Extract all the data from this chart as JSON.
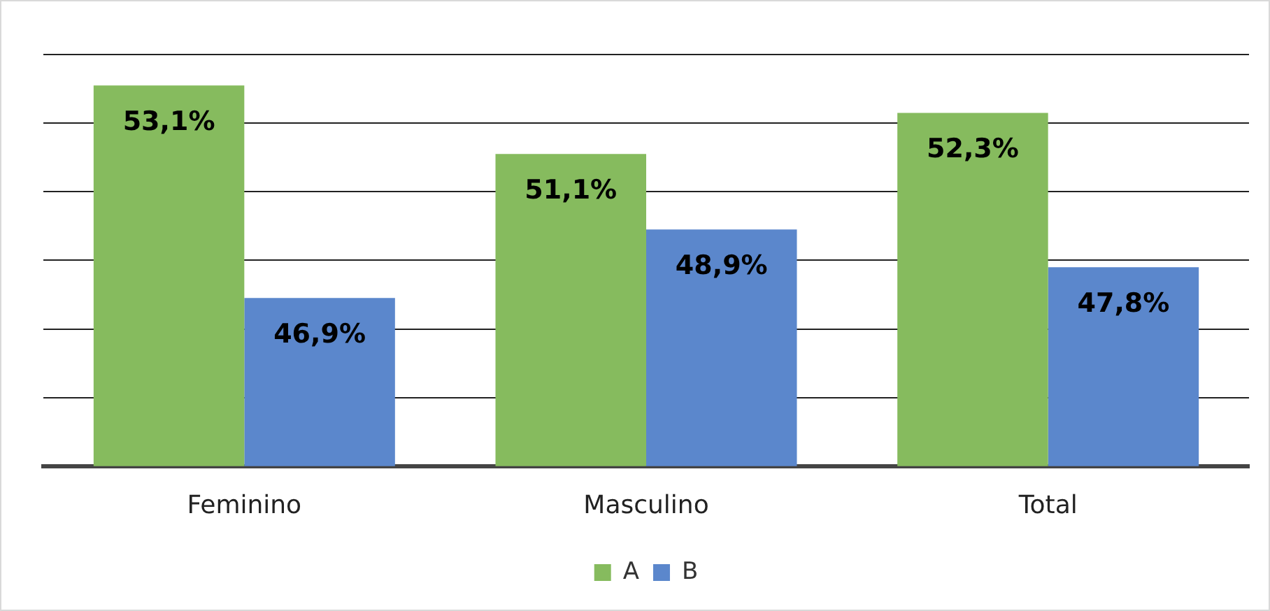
{
  "chart_data": {
    "type": "bar",
    "categories": [
      "Feminino",
      "Masculino",
      "Total"
    ],
    "series": [
      {
        "name": "A",
        "color": "#86bb5e",
        "values": [
          53.1,
          51.1,
          52.3
        ],
        "value_labels": [
          "53,1%",
          "51,1%",
          "52,3%"
        ]
      },
      {
        "name": "B",
        "color": "#5b87cc",
        "values": [
          46.9,
          48.9,
          47.8
        ],
        "value_labels": [
          "46,9%",
          "48,9%",
          "47,8%"
        ]
      }
    ],
    "ylim": [
      42,
      54
    ],
    "yticks": [
      {
        "value": 42,
        "label": null
      },
      {
        "value": 44,
        "label": null
      },
      {
        "value": 46,
        "label": null
      },
      {
        "value": 48,
        "label": null
      },
      {
        "value": 50,
        "label": null
      },
      {
        "value": 52,
        "label": null
      },
      {
        "value": 54,
        "label": null
      }
    ],
    "tick_labels": "x",
    "grid": "y",
    "legend": "bottom"
  }
}
